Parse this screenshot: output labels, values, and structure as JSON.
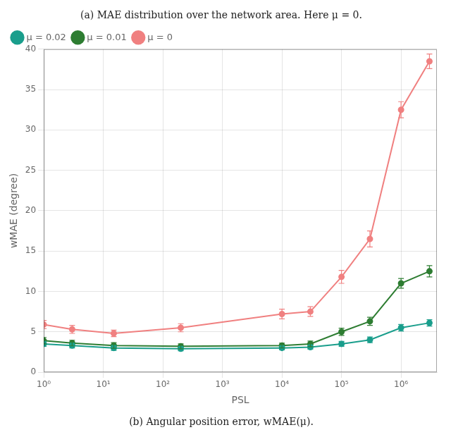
{
  "chart_data": {
    "type": "line",
    "title": "(a) MAE distribution over the network area. Here μ = 0.",
    "subtitle": "(b) Angular position error, wMAE(μ).",
    "xlabel": "PSL",
    "ylabel": "wMAE (degree)",
    "log": "x",
    "grid": true,
    "legend": "upper left",
    "marker": "circle",
    "x": [
      1,
      3,
      15,
      200,
      10000,
      30000,
      100000,
      300000,
      1000000,
      3000000
    ],
    "xlim": [
      1,
      4000000
    ],
    "xticks": [
      {
        "value": 1,
        "label": "10⁰"
      },
      {
        "value": 10,
        "label": "10¹"
      },
      {
        "value": 100,
        "label": "10²"
      },
      {
        "value": 1000,
        "label": "10³"
      },
      {
        "value": 10000,
        "label": "10⁴"
      },
      {
        "value": 100000,
        "label": "10⁵"
      },
      {
        "value": 1000000,
        "label": "10⁶"
      }
    ],
    "ylim": [
      0,
      40
    ],
    "yticks": [
      0,
      5,
      10,
      15,
      20,
      25,
      30,
      35,
      40
    ],
    "series": [
      {
        "name": "μ = 0.02",
        "color": "#1a9e8c",
        "values": [
          3.5,
          3.3,
          3.0,
          2.9,
          3.0,
          3.1,
          3.5,
          4.0,
          5.5,
          6.1
        ],
        "yerr": [
          0.3,
          0.3,
          0.3,
          0.25,
          0.25,
          0.25,
          0.3,
          0.35,
          0.4,
          0.4
        ]
      },
      {
        "name": "μ = 0.01",
        "color": "#2e7d32",
        "values": [
          3.9,
          3.6,
          3.3,
          3.2,
          3.3,
          3.5,
          5.0,
          6.3,
          11.0,
          12.5
        ],
        "yerr": [
          0.4,
          0.35,
          0.35,
          0.3,
          0.3,
          0.35,
          0.45,
          0.5,
          0.6,
          0.7
        ]
      },
      {
        "name": "μ = 0",
        "color": "#f08080",
        "values": [
          5.9,
          5.3,
          4.8,
          5.5,
          7.2,
          7.5,
          11.8,
          16.5,
          32.5,
          38.5
        ],
        "yerr": [
          0.5,
          0.5,
          0.4,
          0.5,
          0.6,
          0.6,
          0.8,
          1.0,
          1.0,
          0.9
        ]
      }
    ]
  }
}
